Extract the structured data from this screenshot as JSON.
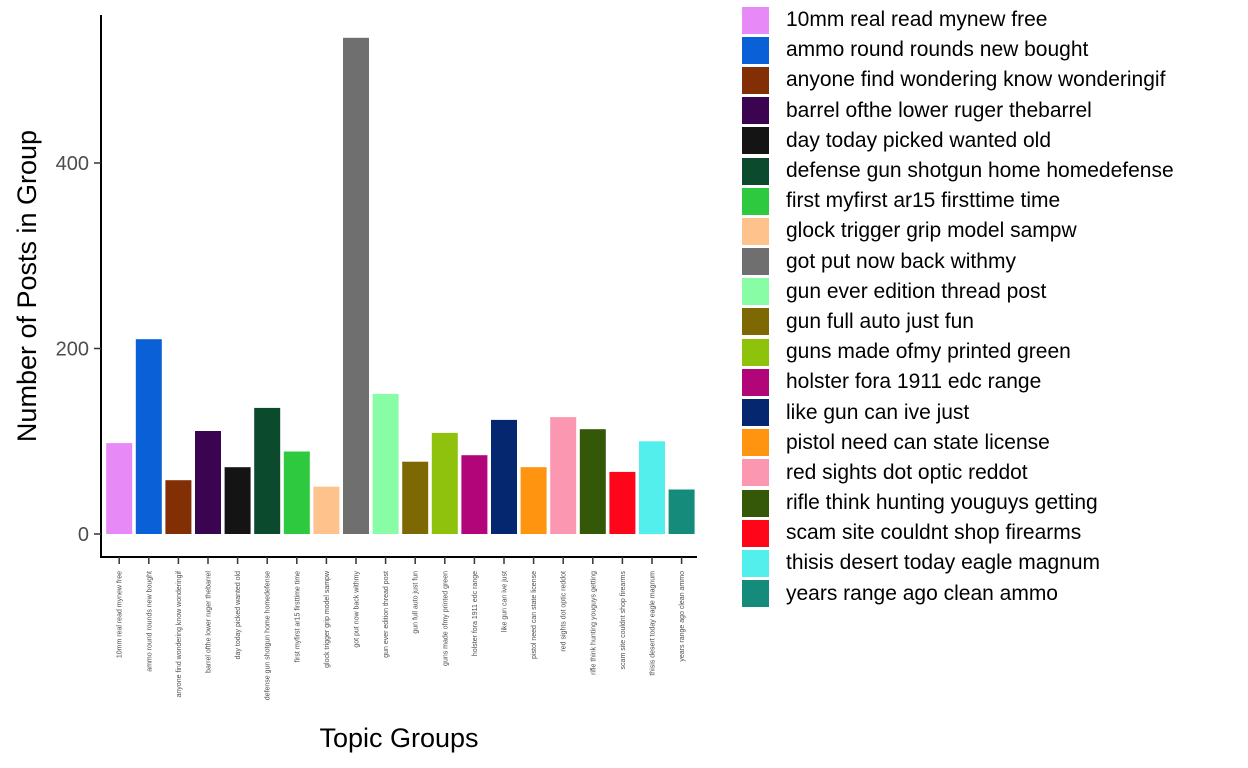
{
  "chart_data": {
    "type": "bar",
    "xlabel": "Topic Groups",
    "ylabel": "Number of Posts in Group",
    "ylim": [
      0,
      560
    ],
    "yticks": [
      0,
      200,
      400
    ],
    "grid": false,
    "legend_position": "right",
    "categories": [
      "10mm real read mynew free",
      "ammo round rounds new bought",
      "anyone find wondering know wonderingif",
      "barrel ofthe lower ruger thebarrel",
      "day today picked wanted old",
      "defense gun shotgun home homedefense",
      "first myfirst ar15 firsttime time",
      "glock trigger grip model sampw",
      "got put now back withmy",
      "gun ever edition thread post",
      "gun full auto just fun",
      "guns made ofmy printed green",
      "holster fora 1911 edc range",
      "like gun can ive just",
      "pistol need can state license",
      "red sights dot optic reddot",
      "rifle think hunting youguys getting",
      "scam site couldnt shop firearms",
      "thisis desert today eagle magnum",
      "years range ago clean ammo"
    ],
    "values": [
      98,
      210,
      58,
      111,
      72,
      136,
      89,
      51,
      535,
      151,
      78,
      109,
      85,
      123,
      72,
      126,
      113,
      67,
      100,
      48
    ],
    "colors": [
      "#E78AF7",
      "#0A60D6",
      "#822F05",
      "#3A0451",
      "#141414",
      "#0B4A2C",
      "#2EC93E",
      "#FEC28C",
      "#6F6F6F",
      "#88FDA6",
      "#7D6804",
      "#8FC20D",
      "#B3057A",
      "#052770",
      "#FE9410",
      "#FC97B1",
      "#345808",
      "#FE0519",
      "#52EFED",
      "#158B7C"
    ]
  }
}
